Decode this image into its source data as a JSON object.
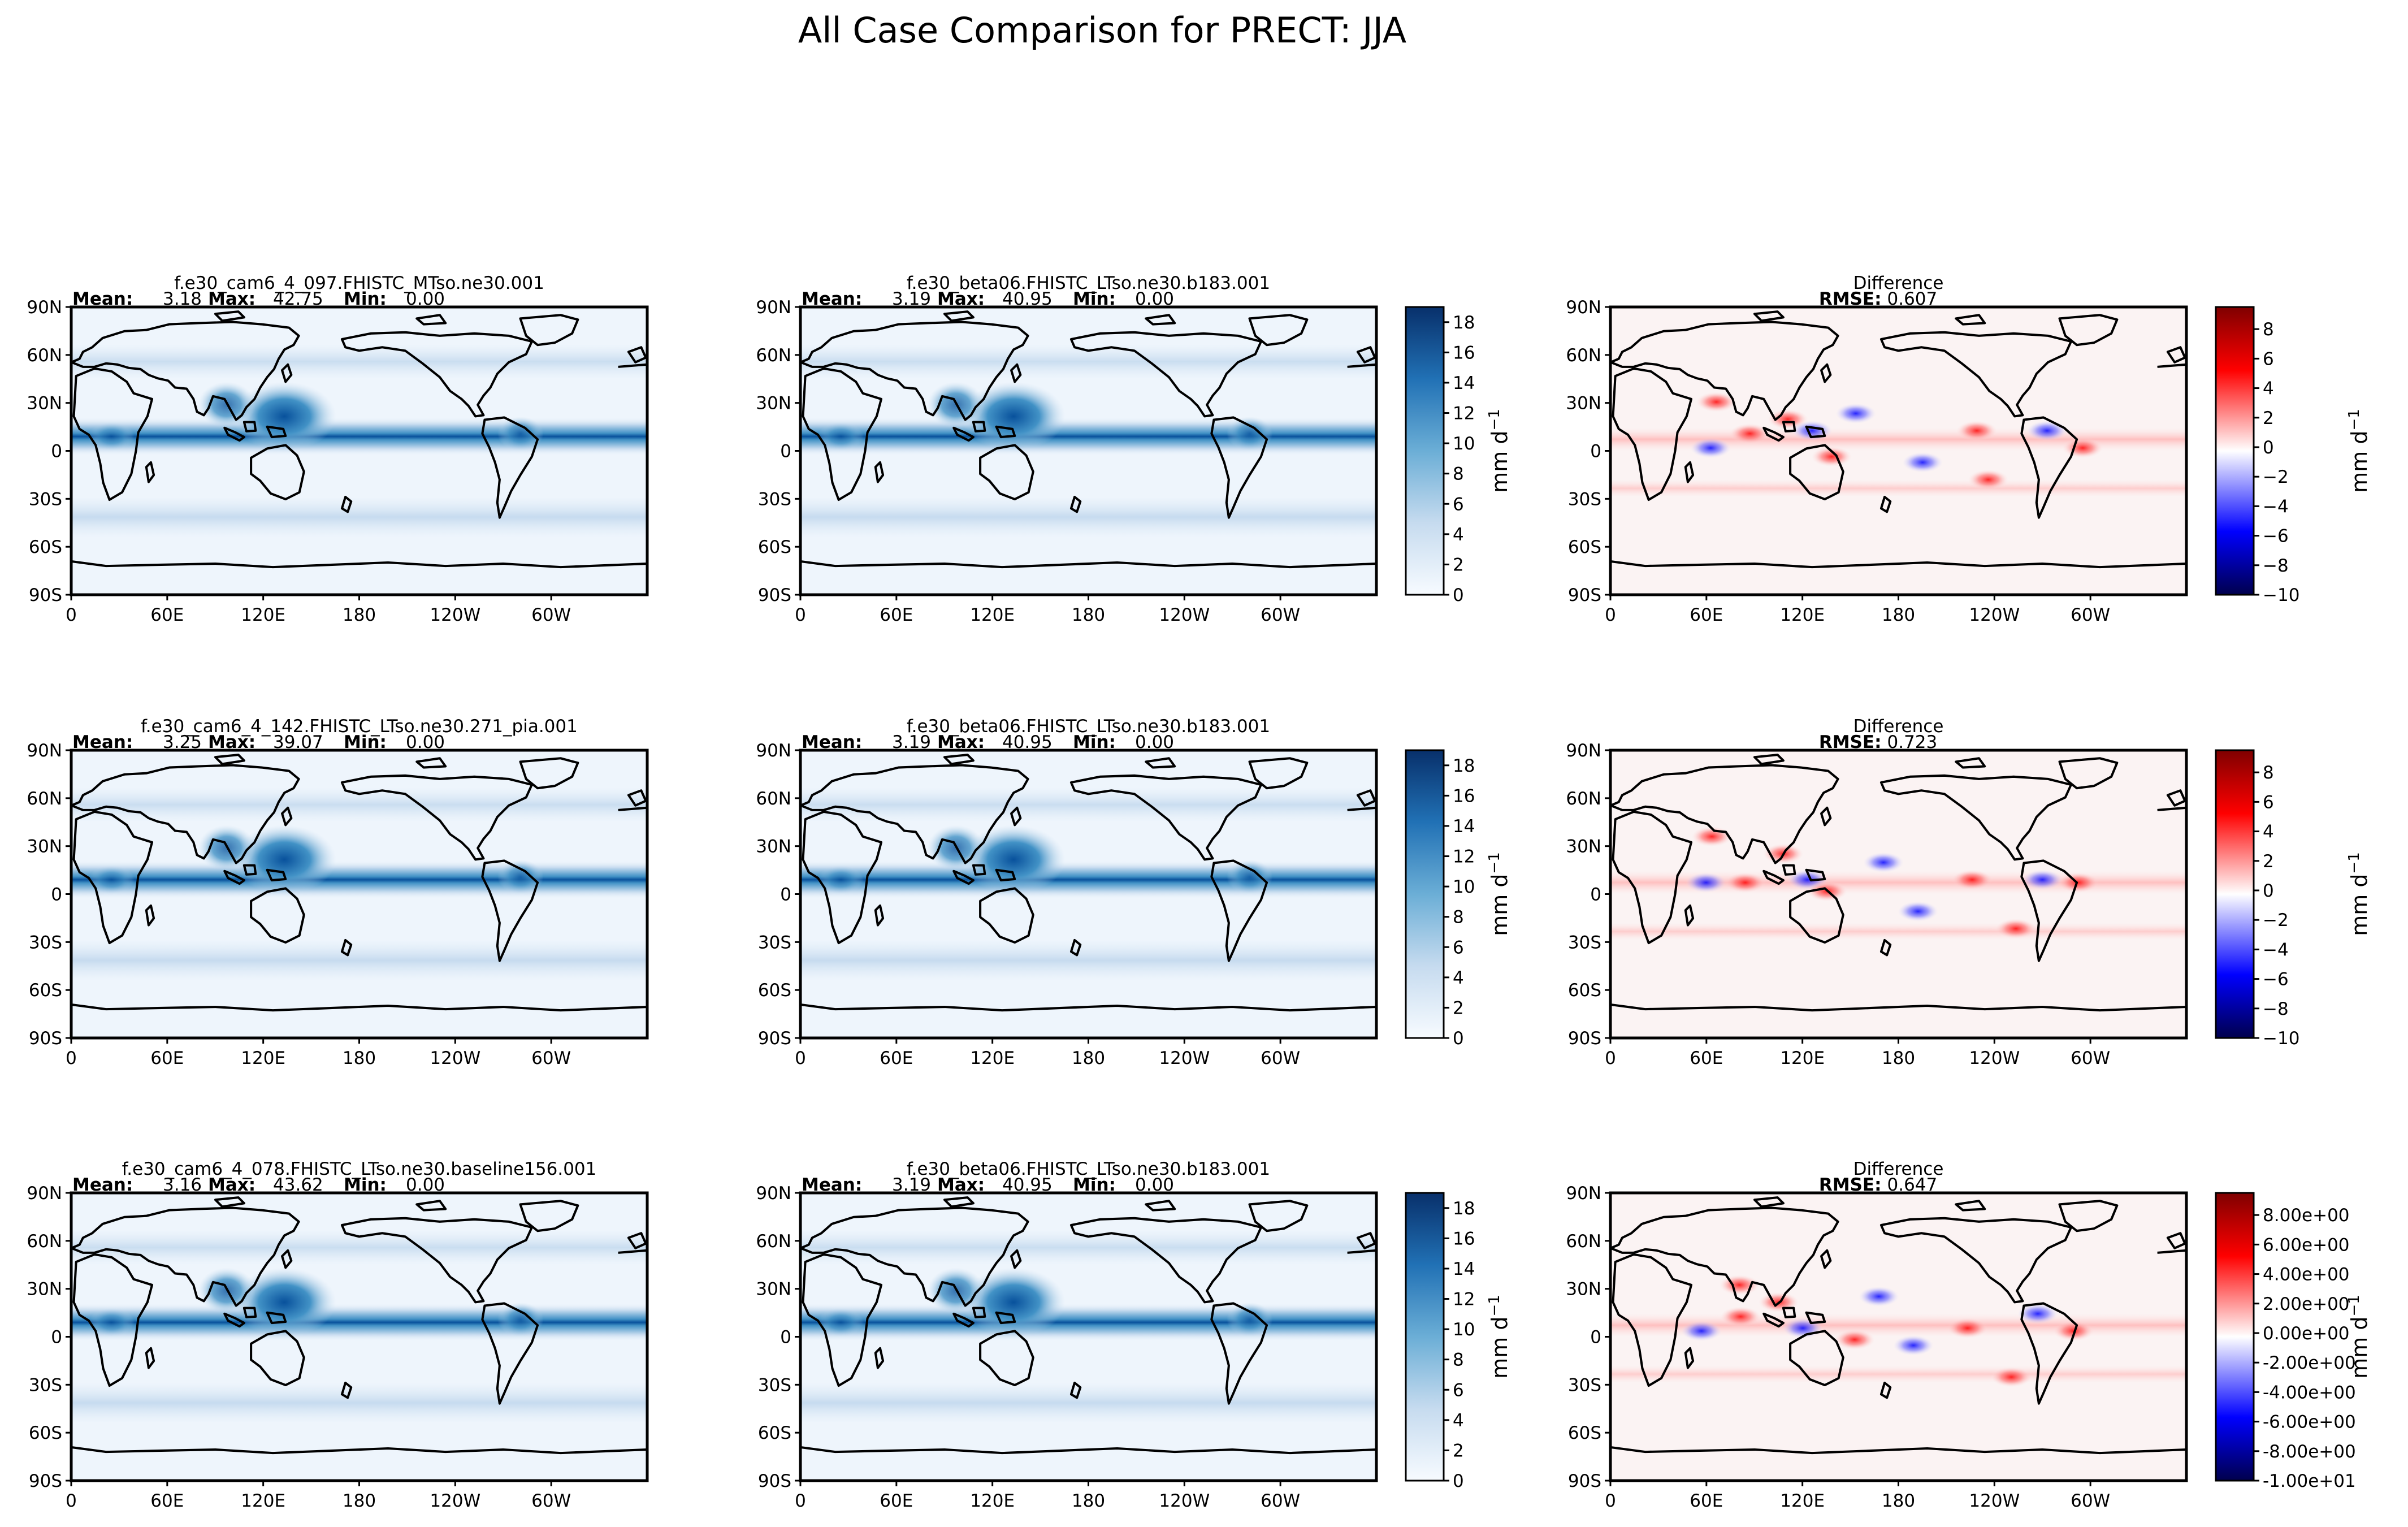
{
  "figure": {
    "suptitle": "All Case Comparison for PRECT: JJA",
    "stat_labels": {
      "mean": "Mean:",
      "max": "Max:",
      "min": "Min:",
      "rmse": "RMSE:"
    },
    "lat_ticks": [
      "90N",
      "60N",
      "30N",
      "0",
      "30S",
      "60S",
      "90S"
    ],
    "lon_ticks": [
      "0",
      "60E",
      "120E",
      "180",
      "120W",
      "60W"
    ]
  },
  "colors": {
    "prect_low": "#f7fbff",
    "prect_mid": "#6baed6",
    "prect_high": "#08306b",
    "diff_neg": "#00004d",
    "diff_pos": "#7f0000",
    "coast": "#000000"
  },
  "chart_data": [
    {
      "type": "heatmap",
      "row": 1,
      "variable": "PRECT",
      "units": "mm d-1",
      "colorbar_label": "mm d",
      "colorbar_exponent": "−1",
      "test": {
        "title": "f.e30_cam6_4_097.FHISTC_MTso.ne30.001",
        "mean": "3.18",
        "max": "42.75",
        "min": "0.00"
      },
      "reference": {
        "title": "f.e30_beta06.FHISTC_LTso.ne30.b183.001",
        "mean": "3.19",
        "max": "40.95",
        "min": "0.00"
      },
      "difference": {
        "title": "Difference",
        "rmse": "0.607"
      },
      "colorbar_ticks": [
        "0",
        "2",
        "4",
        "6",
        "8",
        "10",
        "12",
        "14",
        "16",
        "18"
      ],
      "colorbar_range": [
        0,
        19
      ],
      "diff_colorbar_ticks": [
        "8",
        "6",
        "4",
        "2",
        "0",
        "−2",
        "−4",
        "−6",
        "−8",
        "−10"
      ],
      "diff_colorbar_values": [
        8,
        6,
        4,
        2,
        0,
        -2,
        -4,
        -6,
        -8,
        -10
      ],
      "diff_colorbar_range": [
        -10,
        9.5
      ]
    },
    {
      "type": "heatmap",
      "row": 2,
      "variable": "PRECT",
      "units": "mm d-1",
      "colorbar_label": "mm d",
      "colorbar_exponent": "−1",
      "test": {
        "title": "f.e30_cam6_4_142.FHISTC_LTso.ne30.271_pia.001",
        "mean": "3.25",
        "max": "39.07",
        "min": "0.00"
      },
      "reference": {
        "title": "f.e30_beta06.FHISTC_LTso.ne30.b183.001",
        "mean": "3.19",
        "max": "40.95",
        "min": "0.00"
      },
      "difference": {
        "title": "Difference",
        "rmse": "0.723"
      },
      "colorbar_ticks": [
        "0",
        "2",
        "4",
        "6",
        "8",
        "10",
        "12",
        "14",
        "16",
        "18"
      ],
      "colorbar_range": [
        0,
        19
      ],
      "diff_colorbar_ticks": [
        "8",
        "6",
        "4",
        "2",
        "0",
        "−2",
        "−4",
        "−6",
        "−8",
        "−10"
      ],
      "diff_colorbar_values": [
        8,
        6,
        4,
        2,
        0,
        -2,
        -4,
        -6,
        -8,
        -10
      ],
      "diff_colorbar_range": [
        -10,
        9.5
      ]
    },
    {
      "type": "heatmap",
      "row": 3,
      "variable": "PRECT",
      "units": "mm d-1",
      "colorbar_label": "mm d",
      "colorbar_exponent": "−1",
      "test": {
        "title": "f.e30_cam6_4_078.FHISTC_LTso.ne30.baseline156.001",
        "mean": "3.16",
        "max": "43.62",
        "min": "0.00"
      },
      "reference": {
        "title": "f.e30_beta06.FHISTC_LTso.ne30.b183.001",
        "mean": "3.19",
        "max": "40.95",
        "min": "0.00"
      },
      "difference": {
        "title": "Difference",
        "rmse": "0.647"
      },
      "colorbar_ticks": [
        "0",
        "2",
        "4",
        "6",
        "8",
        "10",
        "12",
        "14",
        "16",
        "18"
      ],
      "colorbar_range": [
        0,
        19
      ],
      "diff_colorbar_ticks": [
        "8.00e+00",
        "6.00e+00",
        "4.00e+00",
        "2.00e+00",
        "0.00e+00",
        "-2.00e+00",
        "-4.00e+00",
        "-6.00e+00",
        "-8.00e+00",
        "-1.00e+01"
      ],
      "diff_colorbar_values": [
        8,
        6,
        4,
        2,
        0,
        -2,
        -4,
        -6,
        -8,
        -10
      ],
      "diff_colorbar_range": [
        -10,
        9.5
      ]
    }
  ]
}
